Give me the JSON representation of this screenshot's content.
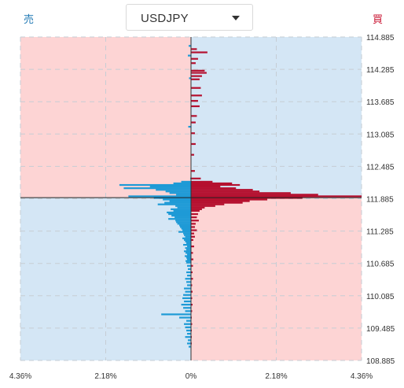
{
  "header": {
    "sell_label": "売",
    "buy_label": "買",
    "symbol": "USDJPY",
    "dropdown_icon": "chevron-down-icon"
  },
  "colors": {
    "sell_zone": "#d4e6f5",
    "buy_zone": "#fdd4d4",
    "sell_bar": "#1e9ad6",
    "buy_bar": "#b5102f",
    "sell_text": "#1f78b4",
    "buy_text": "#c8102e"
  },
  "chart_data": {
    "type": "bar",
    "orientation": "horizontal",
    "current_price": 111.905,
    "xlim": [
      -4.36,
      4.36
    ],
    "ylim": [
      108.885,
      114.885
    ],
    "x_tick_labels": [
      "4.36%",
      "2.18%",
      "0%",
      "2.18%",
      "4.36%"
    ],
    "x_tick_values": [
      -4.36,
      -2.18,
      0,
      2.18,
      4.36
    ],
    "y_tick_labels": [
      "114.885",
      "114.285",
      "113.685",
      "113.085",
      "112.485",
      "111.885",
      "111.285",
      "110.685",
      "110.085",
      "109.485",
      "108.885"
    ],
    "y_tick_values": [
      114.885,
      114.285,
      113.685,
      113.085,
      112.485,
      111.885,
      111.285,
      110.685,
      110.085,
      109.485,
      108.885
    ],
    "grid": true,
    "series": [
      {
        "side": "sell",
        "prices": [
          114.72,
          114.54,
          114.12,
          113.22,
          112.26,
          112.2,
          112.17,
          112.14,
          112.11,
          112.08,
          112.05,
          112.02,
          111.99,
          111.96,
          111.93,
          111.9,
          111.87,
          111.84,
          111.81,
          111.78,
          111.75,
          111.72,
          111.69,
          111.66,
          111.63,
          111.6,
          111.57,
          111.54,
          111.51,
          111.48,
          111.45,
          111.42,
          111.39,
          111.36,
          111.33,
          111.3,
          111.27,
          111.24,
          111.21,
          111.18,
          111.15,
          111.12,
          111.09,
          111.06,
          111.03,
          111.0,
          110.97,
          110.94,
          110.91,
          110.88,
          110.85,
          110.82,
          110.79,
          110.76,
          110.73,
          110.7,
          110.64,
          110.58,
          110.52,
          110.46,
          110.4,
          110.34,
          110.28,
          110.22,
          110.16,
          110.1,
          110.04,
          109.98,
          109.92,
          109.86,
          109.8,
          109.74,
          109.68,
          109.62,
          109.56,
          109.5,
          109.44,
          109.38,
          109.32,
          109.26,
          109.2,
          109.14
        ],
        "values": [
          0.06,
          0.08,
          0.05,
          0.07,
          0.02,
          0.25,
          0.45,
          1.83,
          1.05,
          1.72,
          0.9,
          0.65,
          0.55,
          0.38,
          1.6,
          0.95,
          0.72,
          0.55,
          0.68,
          0.85,
          0.4,
          0.35,
          0.52,
          0.45,
          0.62,
          0.58,
          0.5,
          0.42,
          0.58,
          0.4,
          0.38,
          0.35,
          0.3,
          0.28,
          0.25,
          0.22,
          0.32,
          0.2,
          0.18,
          0.15,
          0.22,
          0.18,
          0.15,
          0.12,
          0.2,
          0.1,
          0.15,
          0.12,
          0.18,
          0.14,
          0.1,
          0.16,
          0.12,
          0.1,
          0.14,
          0.12,
          0.1,
          0.08,
          0.12,
          0.1,
          0.15,
          0.12,
          0.1,
          0.18,
          0.15,
          0.2,
          0.22,
          0.18,
          0.25,
          0.2,
          0.15,
          0.76,
          0.3,
          0.12,
          0.18,
          0.15,
          0.12,
          0.1,
          0.15,
          0.08,
          0.1,
          0.06
        ]
      },
      {
        "side": "buy",
        "prices": [
          114.66,
          114.6,
          114.48,
          114.4,
          114.26,
          114.22,
          114.16,
          114.1,
          113.94,
          113.8,
          113.7,
          113.6,
          113.42,
          113.3,
          113.1,
          112.9,
          112.7,
          112.4,
          112.26,
          112.2,
          112.17,
          112.14,
          112.11,
          112.08,
          112.05,
          112.02,
          111.99,
          111.96,
          111.93,
          111.9,
          111.87,
          111.84,
          111.81,
          111.78,
          111.75,
          111.72,
          111.69,
          111.66,
          111.6,
          111.54,
          111.48,
          111.42,
          111.36,
          111.3,
          111.24,
          111.18,
          111.12,
          111.0,
          110.88,
          110.76,
          110.64,
          110.52,
          110.4,
          110.28,
          110.16,
          110.04,
          109.92,
          109.8,
          109.68,
          109.56,
          109.44,
          109.32,
          109.2,
          109.08
        ],
        "values": [
          0.15,
          0.42,
          0.18,
          0.12,
          0.35,
          0.4,
          0.28,
          0.22,
          0.25,
          0.28,
          0.18,
          0.22,
          0.15,
          0.12,
          0.1,
          0.12,
          0.08,
          0.1,
          0.25,
          0.55,
          1.05,
          1.25,
          0.75,
          1.15,
          1.58,
          1.75,
          2.55,
          3.25,
          4.36,
          2.85,
          1.95,
          1.5,
          1.32,
          0.85,
          0.62,
          0.35,
          0.28,
          0.22,
          0.18,
          0.15,
          0.2,
          0.12,
          0.1,
          0.15,
          0.08,
          0.1,
          0.06,
          0.08,
          0.05,
          0.06,
          0.05,
          0.04,
          0.05,
          0.03,
          0.04,
          0.03,
          0.04,
          0.03,
          0.02,
          0.03,
          0.02,
          0.02,
          0.02,
          0.01
        ]
      }
    ]
  }
}
